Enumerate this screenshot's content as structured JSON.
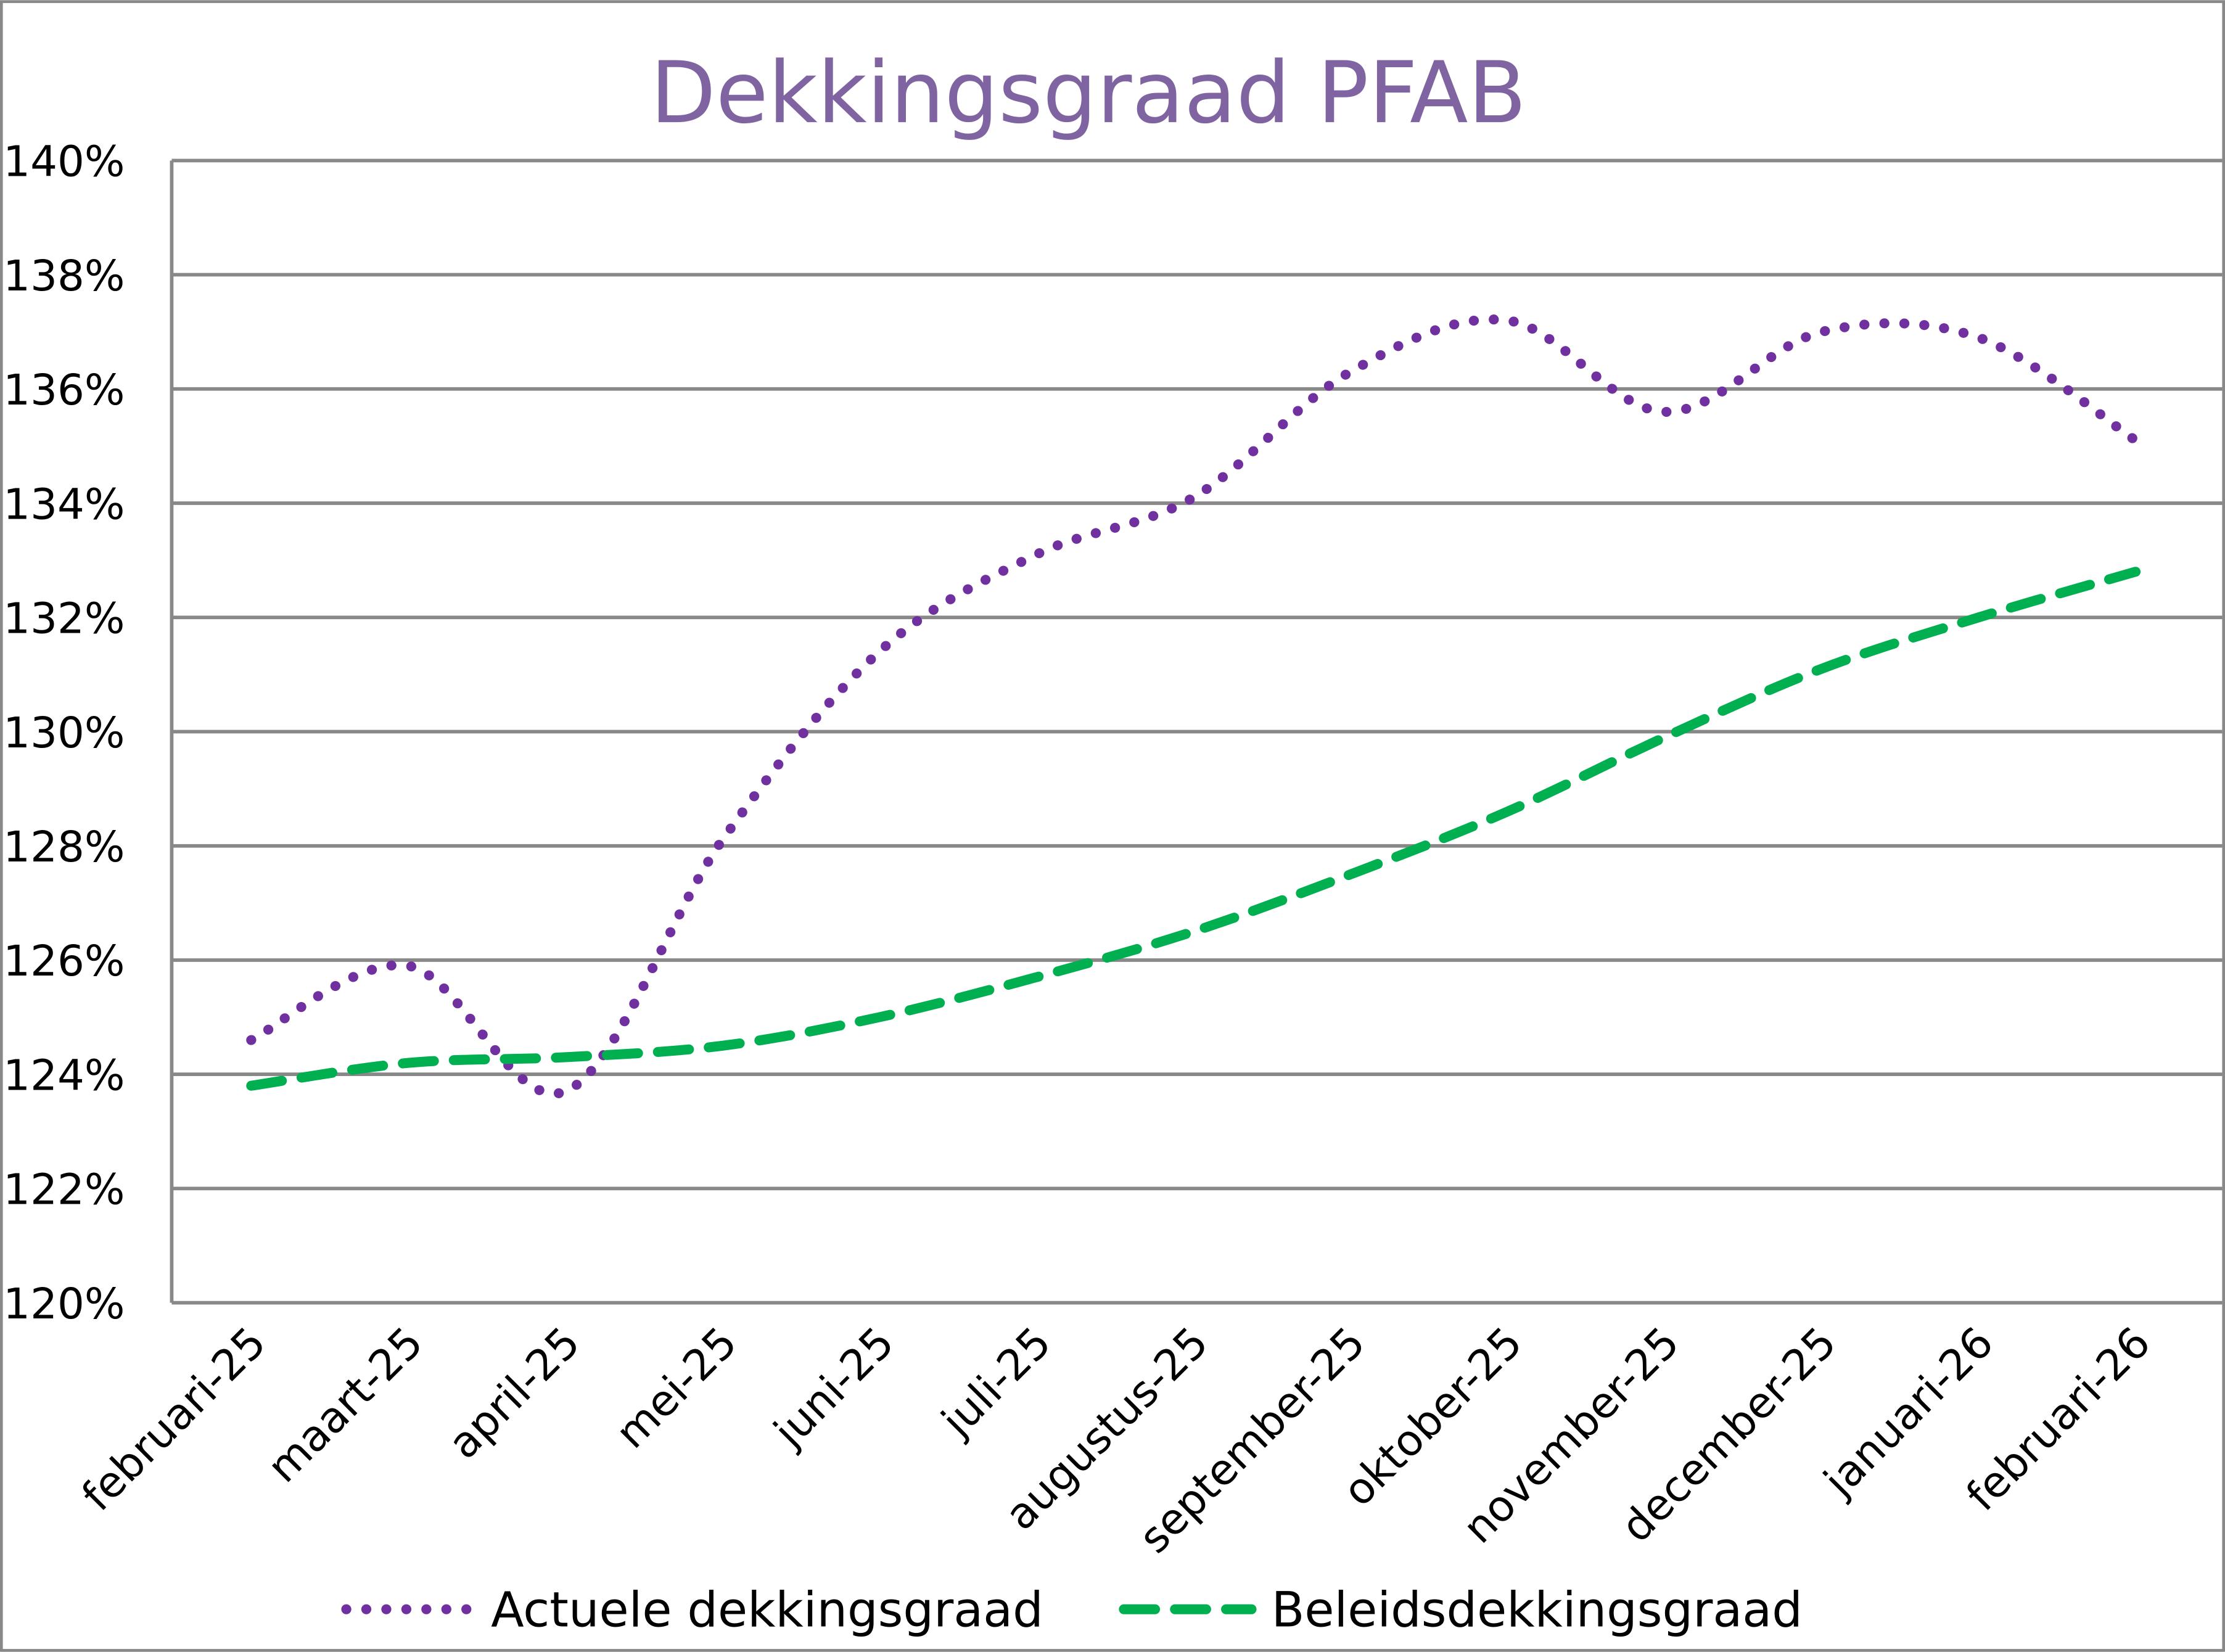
{
  "chart_data": {
    "type": "line",
    "title": "Dekkingsgraad  PFAB",
    "xlabel": "",
    "ylabel": "",
    "ylim": [
      120,
      140
    ],
    "y_ticks": [
      "120%",
      "122%",
      "124%",
      "126%",
      "128%",
      "130%",
      "132%",
      "134%",
      "136%",
      "138%",
      "140%"
    ],
    "y_tick_values": [
      120,
      122,
      124,
      126,
      128,
      130,
      132,
      134,
      136,
      138,
      140
    ],
    "grid": true,
    "legend_position": "bottom",
    "categories": [
      "februari-25",
      "maart-25",
      "april-25",
      "mei-25",
      "juni-25",
      "juli-25",
      "augustus-25",
      "september-25",
      "oktober-25",
      "november-25",
      "december-25",
      "januari-26",
      "februari-26"
    ],
    "series": [
      {
        "name": "Actuele dekkingsgraad",
        "color": "#7030A0",
        "style": "dotted",
        "values": [
          124.6,
          125.9,
          123.7,
          128.1,
          131.4,
          133.1,
          134.1,
          136.3,
          137.2,
          135.6,
          137.0,
          136.9,
          135.1
        ]
      },
      {
        "name": "Beleidsdekkingsgraad",
        "color": "#00B050",
        "style": "dashed",
        "values": [
          123.8,
          124.2,
          124.3,
          124.5,
          125.0,
          125.7,
          126.5,
          127.5,
          128.6,
          129.9,
          131.1,
          132.0,
          132.8
        ]
      }
    ]
  },
  "colors": {
    "title": "#8064A2",
    "grid": "#888888",
    "border": "#888888"
  }
}
